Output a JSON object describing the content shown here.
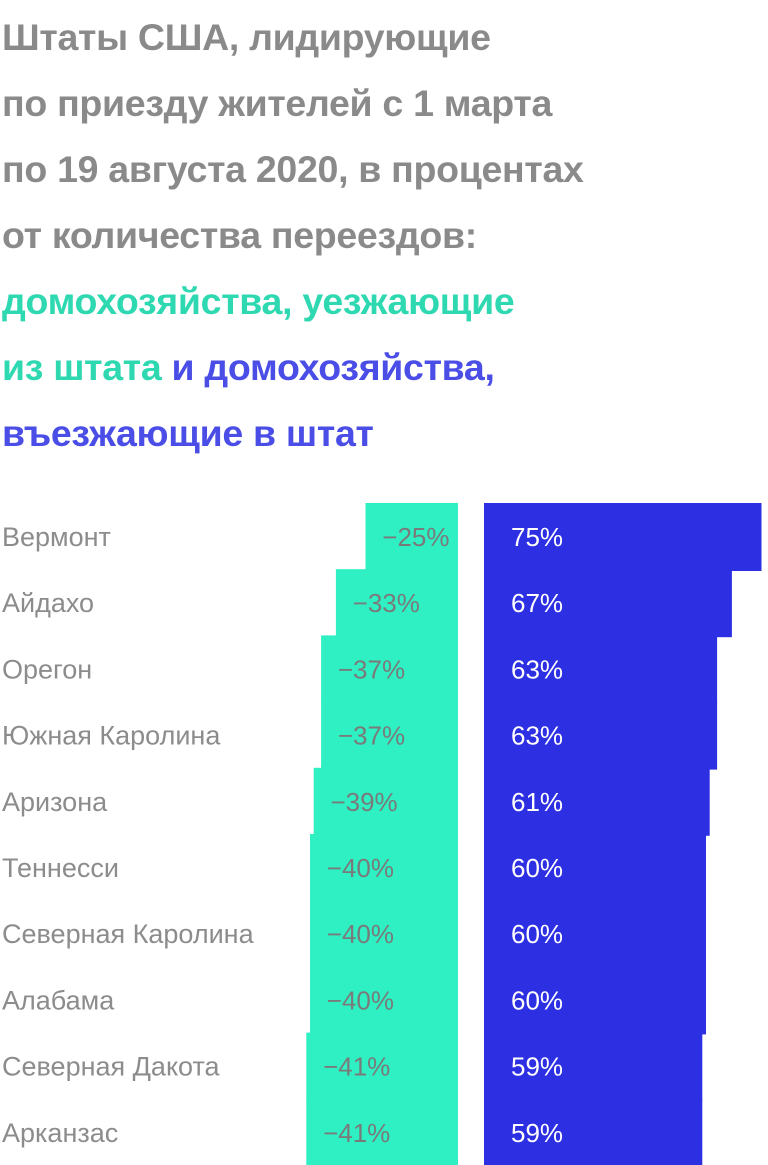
{
  "heading": {
    "line1": "Штаты США, лидирующие",
    "line2": "по приезду жителей с 1 марта",
    "line3": "по 19 августа 2020, в процентах",
    "line4": "от количества переездов:",
    "line5": "домохозяйства, уезжающие",
    "line6_part1": "из штата",
    "line6_part2": " и домохозяйства,",
    "line7": "въезжающие в штат"
  },
  "colors": {
    "title": "#8a8a8a",
    "outbound": "#2ef0c3",
    "inbound": "#2d2fe3",
    "legend_outbound": "#2ed8b0",
    "legend_inbound": "#4a4ee6",
    "label": "#8c8c8c",
    "value_on_outbound": "#7a7a7a",
    "value_on_inbound": "#ffffff"
  },
  "chart_data": {
    "type": "bar",
    "categories": [
      "Вермонт",
      "Айдахо",
      "Орегон",
      "Южная Каролина",
      "Аризона",
      "Теннесси",
      "Северная Каролина",
      "Алабама",
      "Северная Дакота",
      "Арканзас"
    ],
    "series": [
      {
        "name": "домохозяйства, уезжающие из штата",
        "values": [
          -25,
          -33,
          -37,
          -37,
          -39,
          -40,
          -40,
          -40,
          -41,
          -41
        ],
        "labels": [
          "−25%",
          "−33%",
          "−37%",
          "−37%",
          "−39%",
          "−40%",
          "−40%",
          "−40%",
          "−41%",
          "−41%"
        ]
      },
      {
        "name": "домохозяйства, въезжающие в штат",
        "values": [
          75,
          67,
          63,
          63,
          61,
          60,
          60,
          60,
          59,
          59
        ],
        "labels": [
          "75%",
          "67%",
          "63%",
          "63%",
          "61%",
          "60%",
          "60%",
          "60%",
          "59%",
          "59%"
        ]
      }
    ],
    "orientation": "horizontal",
    "grid": false,
    "legend": "title"
  }
}
